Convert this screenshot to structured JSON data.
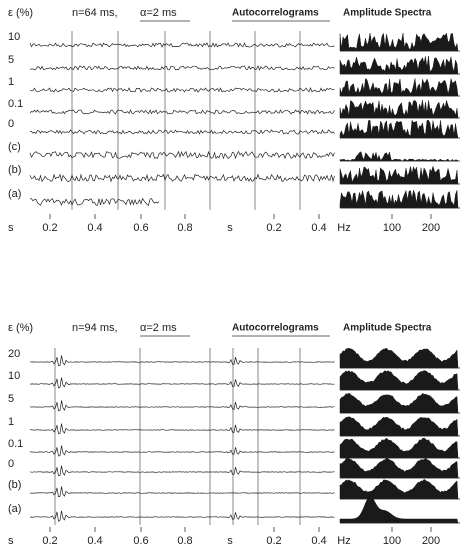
{
  "panels": [
    {
      "header": {
        "epsilon": "ε (%)",
        "n": "n=64 ms,",
        "alpha": "α=2 ms",
        "autocorrelograms": "Autocorrelograms",
        "spectra": "Amplitude Spectra"
      },
      "rows": [
        "10",
        "5",
        "1",
        "0.1",
        "0",
        "(c)",
        "(b)",
        "(a)"
      ],
      "axis": [
        "s",
        "0.2",
        "0.4",
        "0.6",
        "0.8",
        "s",
        "0.2",
        "0.4",
        "Hz",
        "100",
        "200"
      ]
    },
    {
      "header": {
        "epsilon": "ε (%)",
        "n": "n=94 ms,",
        "alpha": "α=2 ms",
        "autocorrelograms": "Autocorrelograms",
        "spectra": "Amplitude Spectra"
      },
      "rows": [
        "20",
        "10",
        "5",
        "1",
        "0.1",
        "0",
        "(b)",
        "(a)"
      ],
      "axis": [
        "s",
        "0.2",
        "0.4",
        "0.6",
        "0.8",
        "s",
        "0.2",
        "0.4",
        "Hz",
        "100",
        "200"
      ]
    }
  ]
}
